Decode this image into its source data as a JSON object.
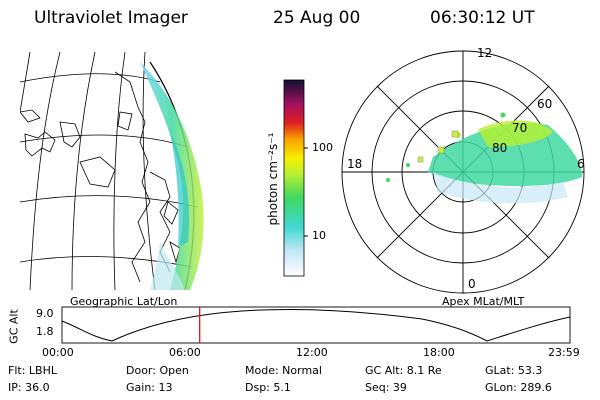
{
  "header": {
    "title": "Ultraviolet Imager",
    "date": "25 Aug 00",
    "time": "06:30:12 UT"
  },
  "colorbar": {
    "unit_label": "photon cm⁻²s⁻¹",
    "tick_100": "100",
    "tick_10": "10"
  },
  "polar": {
    "mlt_top": "12",
    "mlt_left": "18",
    "mlt_right": "6",
    "mlt_bottom": "0",
    "lat_60": "60",
    "lat_70": "70",
    "lat_80": "80"
  },
  "labels": {
    "geo": "Geographic Lat/Lon",
    "apex": "Apex MLat/MLT"
  },
  "orbit": {
    "axis_label": "GC Alt",
    "alt_max": "9.0",
    "alt_min": "1.8",
    "times": [
      "00:00",
      "06:00",
      "12:00",
      "18:00",
      "23:59"
    ],
    "current_time_fraction": 0.271
  },
  "info": {
    "flt": "Flt: LBHL",
    "ip": "IP: 36.0",
    "door": "Door: Open",
    "gain": "Gain: 13",
    "mode": "Mode: Normal",
    "dsp": "Dsp:     5.1",
    "gcalt": "GC Alt: 8.1 Re",
    "seq": "Seq: 39",
    "glat": "GLat:   53.3",
    "glon": "GLon: 289.6"
  }
}
